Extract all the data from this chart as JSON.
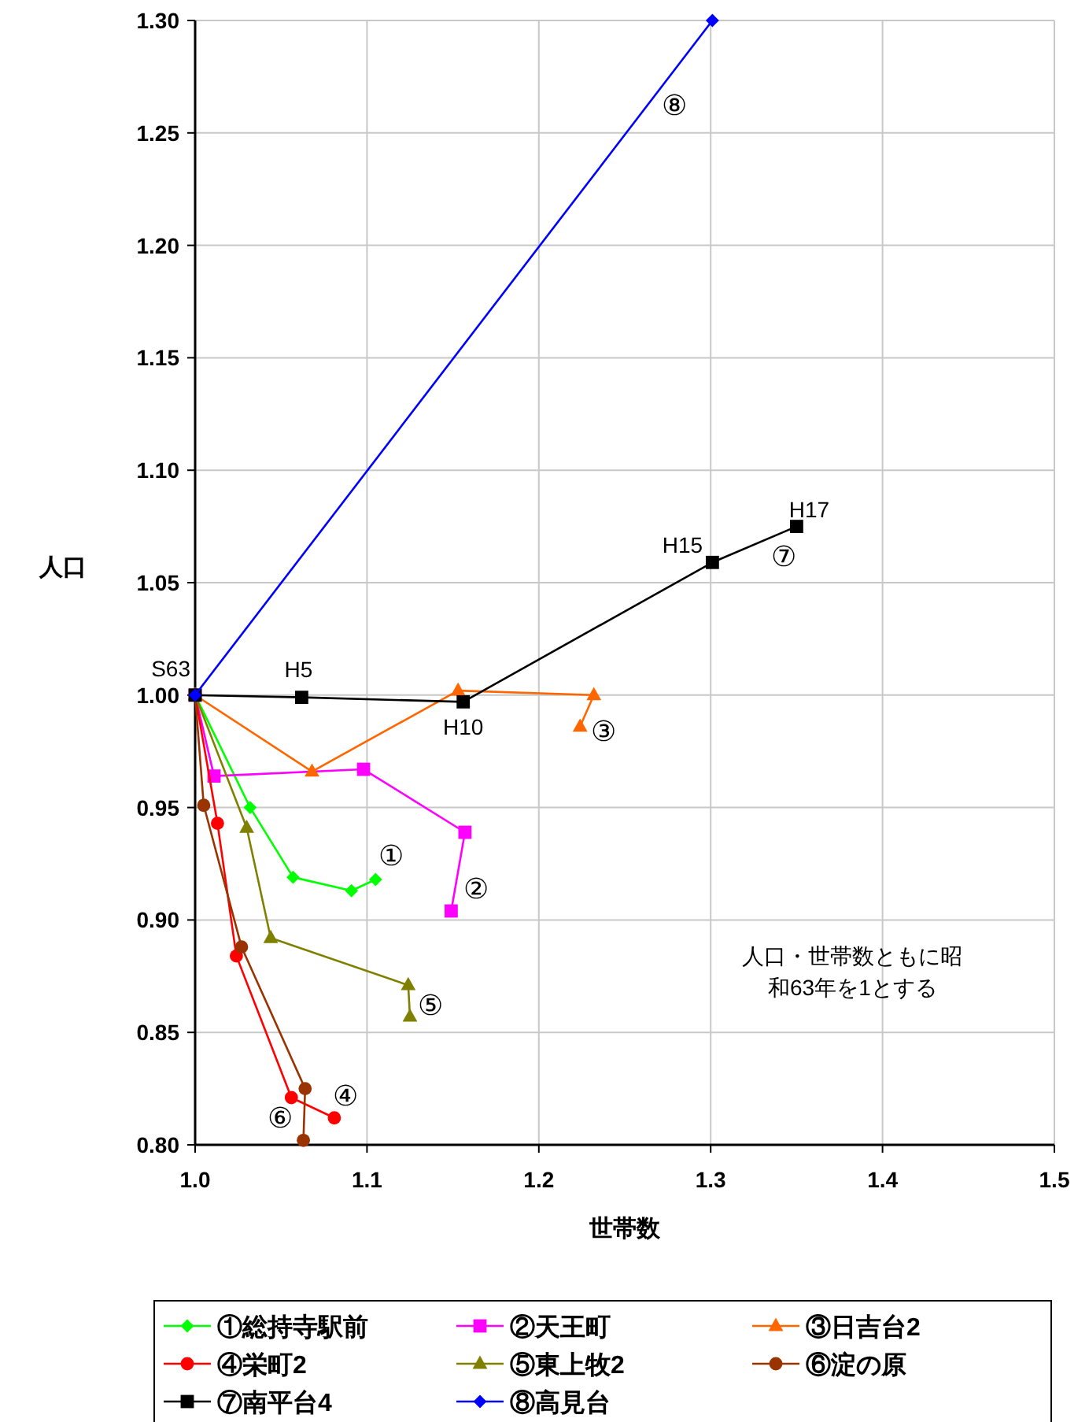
{
  "chart_data": {
    "type": "line",
    "xlabel": "世帯数",
    "ylabel": "人口",
    "xlim": [
      1.0,
      1.5
    ],
    "ylim": [
      0.8,
      1.3
    ],
    "xticks": [
      {
        "value": 1.0,
        "label": "1.0"
      },
      {
        "value": 1.1,
        "label": "1.1"
      },
      {
        "value": 1.2,
        "label": "1.2"
      },
      {
        "value": 1.3,
        "label": "1.3"
      },
      {
        "value": 1.4,
        "label": "1.4"
      },
      {
        "value": 1.5,
        "label": "1.5"
      }
    ],
    "yticks": [
      {
        "value": 0.8,
        "label": "0.80"
      },
      {
        "value": 0.85,
        "label": "0.85"
      },
      {
        "value": 0.9,
        "label": "0.90"
      },
      {
        "value": 0.95,
        "label": "0.95"
      },
      {
        "value": 1.0,
        "label": "1.00"
      },
      {
        "value": 1.05,
        "label": "1.05"
      },
      {
        "value": 1.1,
        "label": "1.10"
      },
      {
        "value": 1.15,
        "label": "1.15"
      },
      {
        "value": 1.2,
        "label": "1.20"
      },
      {
        "value": 1.25,
        "label": "1.25"
      },
      {
        "value": 1.3,
        "label": "1.30"
      }
    ],
    "grid": true,
    "legend": "bottom",
    "series": [
      {
        "name": "①総持寺駅前",
        "color": "#00ff00",
        "marker": "diamond",
        "x": [
          1.0,
          1.032,
          1.057,
          1.091,
          1.105
        ],
        "values": [
          1.0,
          0.95,
          0.919,
          0.913,
          0.918
        ]
      },
      {
        "name": "②天王町",
        "color": "#ff00ff",
        "marker": "square",
        "x": [
          1.0,
          1.011,
          1.098,
          1.157,
          1.149
        ],
        "values": [
          1.0,
          0.964,
          0.967,
          0.939,
          0.904
        ]
      },
      {
        "name": "③日吉台2",
        "color": "#ff6600",
        "marker": "triangle",
        "x": [
          1.0,
          1.068,
          1.153,
          1.232,
          1.224
        ],
        "values": [
          1.0,
          0.966,
          1.002,
          1.0,
          0.986
        ]
      },
      {
        "name": "④栄町2",
        "color": "#ff0000",
        "marker": "circle",
        "x": [
          1.0,
          1.013,
          1.024,
          1.056,
          1.081
        ],
        "values": [
          1.0,
          0.943,
          0.884,
          0.821,
          0.812
        ]
      },
      {
        "name": "⑤東上牧2",
        "color": "#808000",
        "marker": "triangle",
        "x": [
          1.0,
          1.03,
          1.044,
          1.124,
          1.125
        ],
        "values": [
          1.0,
          0.941,
          0.892,
          0.871,
          0.857
        ]
      },
      {
        "name": "⑥淀の原",
        "color": "#993300",
        "marker": "circle",
        "x": [
          1.0,
          1.005,
          1.027,
          1.064,
          1.063
        ],
        "values": [
          1.0,
          0.951,
          0.888,
          0.825,
          0.802
        ]
      },
      {
        "name": "⑦南平台4",
        "color": "#000000",
        "marker": "square",
        "x": [
          1.0,
          1.062,
          1.156,
          1.301,
          1.35
        ],
        "values": [
          1.0,
          0.999,
          0.997,
          1.059,
          1.075
        ]
      },
      {
        "name": "⑧高見台",
        "color": "#0000ff",
        "marker": "diamond",
        "x": [
          1.0,
          1.301
        ],
        "values": [
          1.0,
          1.3
        ]
      }
    ],
    "annotations": [
      {
        "text": "S63",
        "x": 1.0,
        "y": 1.0
      },
      {
        "text": "H5",
        "x": 1.062,
        "y": 0.999
      },
      {
        "text": "H10",
        "x": 1.156,
        "y": 0.997
      },
      {
        "text": "H15",
        "x": 1.301,
        "y": 1.059
      },
      {
        "text": "H17",
        "x": 1.35,
        "y": 1.075
      },
      {
        "text": "①",
        "x": 1.105,
        "y": 0.918
      },
      {
        "text": "②",
        "x": 1.149,
        "y": 0.904
      },
      {
        "text": "③",
        "x": 1.224,
        "y": 0.986
      },
      {
        "text": "④",
        "x": 1.081,
        "y": 0.812
      },
      {
        "text": "⑤",
        "x": 1.125,
        "y": 0.857
      },
      {
        "text": "⑥",
        "x": 1.063,
        "y": 0.802
      },
      {
        "text": "⑦",
        "x": 1.35,
        "y": 1.075
      },
      {
        "text": "⑧",
        "x": 1.301,
        "y": 1.3
      },
      "人口・世帯数ともに昭和63年を1とする"
    ]
  }
}
